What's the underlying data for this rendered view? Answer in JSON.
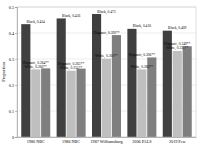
{
  "chart_data": {
    "type": "bar",
    "y_label": "Proportion",
    "categories": [
      "1980 NBC",
      "1986 NBC",
      "1987 Williamsburg",
      "2006 PALS",
      "2019 Pew"
    ],
    "series": [
      {
        "name": "Black",
        "color": "#404040",
        "values": [
          0.434,
          0.456,
          0.473,
          0.416,
          0.409
        ],
        "value_labels": [
          "Black, 0.434",
          "Black, 0.456",
          "Black, 0.473",
          "Black, 0.416",
          "Black, 0.409"
        ]
      },
      {
        "name": "White",
        "color": "#bfbfbf",
        "values": [
          0.26,
          0.255,
          0.301,
          0.26,
          0.331
        ],
        "value_labels": [
          "White, 0.260**",
          "White, 0.255**",
          "White, 0.301**",
          "White, 0.260**",
          "White, 0.331**"
        ]
      },
      {
        "name": "Hispanic",
        "color": "#7f7f7f",
        "values": [
          0.264,
          0.263,
          0.392,
          0.306,
          0.349
        ],
        "value_labels": [
          "Hispanic, 0.264**",
          "Hispanic, 0.263**",
          "Hispanic, 0.392**",
          "Hispanic, 0.306**",
          "Hispanic, 0.349**"
        ]
      }
    ],
    "ylim": [
      0,
      0.5
    ],
    "yticks": [
      0,
      0.1,
      0.2,
      0.3,
      0.4,
      0.5
    ],
    "grid": true,
    "data_labels": true
  }
}
